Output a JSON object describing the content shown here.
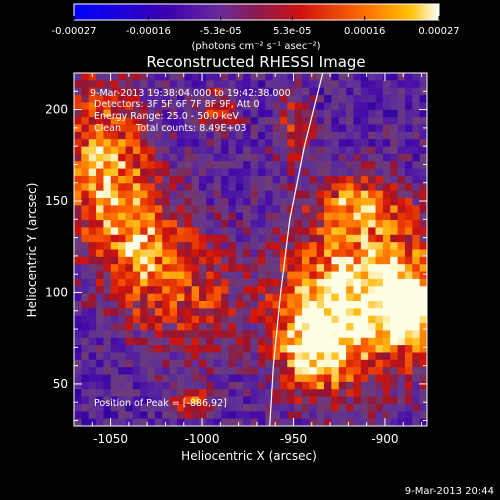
{
  "chart_data": {
    "type": "heatmap",
    "title": "Reconstructed RHESSI Image",
    "xlabel": "Heliocentric X (arcsec)",
    "ylabel": "Heliocentric Y (arcsec)",
    "xlim": [
      -1070,
      -877
    ],
    "ylim": [
      27,
      220
    ],
    "x_ticks": [
      -1050,
      -1000,
      -950,
      -900
    ],
    "x_tick_labels": [
      "-1050",
      "-1000",
      "-950",
      "-900"
    ],
    "y_ticks": [
      50,
      100,
      150,
      200
    ],
    "y_tick_labels": [
      "50",
      "100",
      "150",
      "200"
    ],
    "colorbar": {
      "min": -0.00027,
      "max": 0.00027,
      "ticks": [
        -0.00027,
        -0.00016,
        -5.3e-05,
        5.3e-05,
        0.00016,
        0.00027
      ],
      "tick_labels": [
        "-0.00027",
        "-0.00016",
        "-5.3e-05",
        "5.3e-05",
        "0.00016",
        "0.00027"
      ],
      "unit_label": "(photons cm⁻² s⁻¹ asec⁻²)",
      "colors": [
        "#0000ff",
        "#4b00b4",
        "#7030a0",
        "#c0103a",
        "#ff4000",
        "#ff9900",
        "#ffffff"
      ]
    },
    "annotations": {
      "time_range": "9-Mar-2013 19:38:04.000 to 19:42:38.000",
      "detectors": "Detectors: 3F 5F 6F 7F 8F 9F, Att 0",
      "energy_range": "Energy Range: 25.0 - 50.0 keV",
      "clean_counts": "Clean     Total counts: 8.49E+03",
      "peak": "Position of Peak = [-886,92]"
    },
    "peak": {
      "x": -886,
      "y": 92
    },
    "limb": [
      {
        "x": -934,
        "y": 220
      },
      {
        "x": -944,
        "y": 180
      },
      {
        "x": -952,
        "y": 140
      },
      {
        "x": -957,
        "y": 100
      },
      {
        "x": -961,
        "y": 60
      },
      {
        "x": -963,
        "y": 27
      }
    ],
    "colorbar_value_notes": "approx",
    "grid": false,
    "legend": "none"
  },
  "footer": {
    "timestamp": "9-Mar-2013 20:44"
  }
}
